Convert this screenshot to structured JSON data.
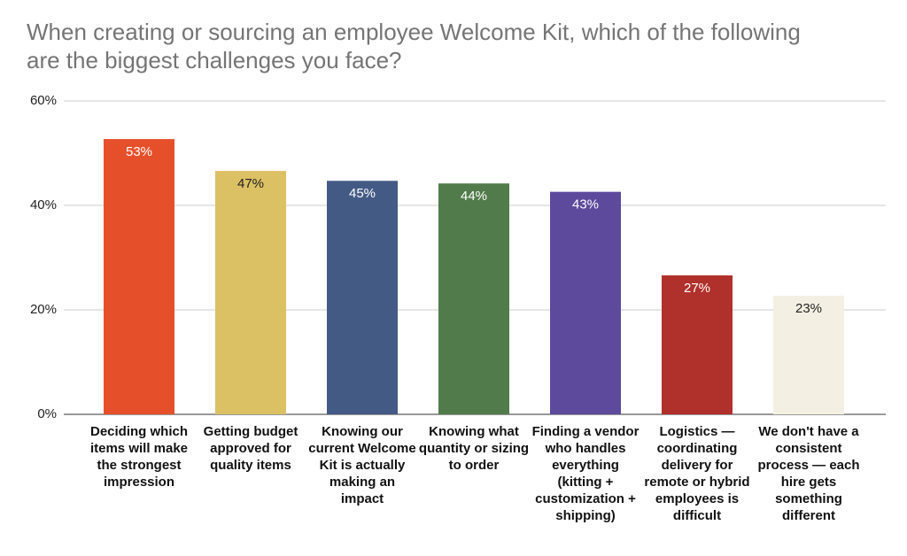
{
  "chart_data": {
    "type": "bar",
    "title": "When creating or sourcing an employee Welcome Kit, which of the following are the biggest challenges you face?",
    "categories": [
      "Deciding which items will make the strongest impression",
      "Getting budget approved for quality items",
      "Knowing our current Welcome Kit is actually making an impact",
      "Knowing what quantity or sizing to order",
      "Finding a vendor who handles everything (kitting + customization + shipping)",
      "Logistics — coordinating delivery for remote or hybrid employees is difficult",
      "We don't have a consistent process — each hire gets something different"
    ],
    "values": [
      52.7,
      46.6,
      44.7,
      44.2,
      42.6,
      26.6,
      22.7
    ],
    "value_labels": [
      "53%",
      "47%",
      "45%",
      "44%",
      "43%",
      "27%",
      "23%"
    ],
    "colors": [
      "#e5502a",
      "#dcc064",
      "#435a85",
      "#527b4b",
      "#5d4a9c",
      "#b0302b",
      "#f3f0e3"
    ],
    "ylim": [
      0,
      60
    ],
    "yticks": [
      {
        "value": 0,
        "label": "0%"
      },
      {
        "value": 20,
        "label": "20%"
      },
      {
        "value": 40,
        "label": "40%"
      },
      {
        "value": 60,
        "label": "60%"
      }
    ],
    "grid": true
  }
}
